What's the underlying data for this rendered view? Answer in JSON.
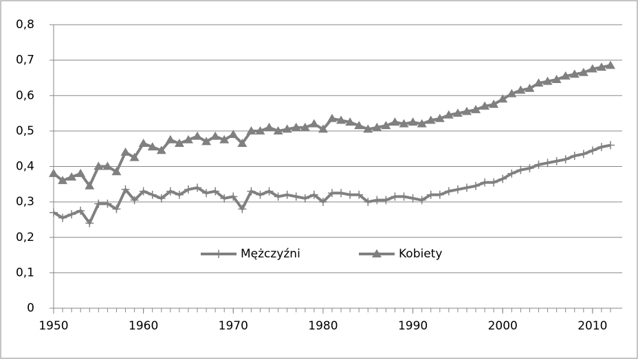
{
  "chart_data": {
    "type": "line",
    "x": [
      1950,
      1951,
      1952,
      1953,
      1954,
      1955,
      1956,
      1957,
      1958,
      1959,
      1960,
      1961,
      1962,
      1963,
      1964,
      1965,
      1966,
      1967,
      1968,
      1969,
      1970,
      1971,
      1972,
      1973,
      1974,
      1975,
      1976,
      1977,
      1978,
      1979,
      1980,
      1981,
      1982,
      1983,
      1984,
      1985,
      1986,
      1987,
      1988,
      1989,
      1990,
      1991,
      1992,
      1993,
      1994,
      1995,
      1996,
      1997,
      1998,
      1999,
      2000,
      2001,
      2002,
      2003,
      2004,
      2005,
      2006,
      2007,
      2008,
      2009,
      2010,
      2011,
      2012
    ],
    "series": [
      {
        "name": "Mężczyźni",
        "color": "#808080",
        "marker": "plus",
        "values": [
          0.27,
          0.255,
          0.265,
          0.275,
          0.24,
          0.295,
          0.295,
          0.28,
          0.335,
          0.305,
          0.33,
          0.32,
          0.31,
          0.33,
          0.32,
          0.335,
          0.34,
          0.325,
          0.33,
          0.31,
          0.315,
          0.28,
          0.33,
          0.32,
          0.33,
          0.315,
          0.32,
          0.315,
          0.31,
          0.32,
          0.3,
          0.325,
          0.325,
          0.32,
          0.32,
          0.3,
          0.305,
          0.305,
          0.315,
          0.315,
          0.31,
          0.305,
          0.32,
          0.32,
          0.33,
          0.335,
          0.34,
          0.345,
          0.355,
          0.355,
          0.365,
          0.38,
          0.39,
          0.395,
          0.405,
          0.41,
          0.415,
          0.42,
          0.43,
          0.435,
          0.445,
          0.455,
          0.46
        ]
      },
      {
        "name": "Kobiety",
        "color": "#808080",
        "marker": "triangle",
        "values": [
          0.38,
          0.36,
          0.37,
          0.38,
          0.345,
          0.4,
          0.4,
          0.385,
          0.44,
          0.425,
          0.465,
          0.455,
          0.445,
          0.475,
          0.465,
          0.475,
          0.485,
          0.47,
          0.485,
          0.475,
          0.49,
          0.465,
          0.5,
          0.5,
          0.51,
          0.5,
          0.505,
          0.51,
          0.51,
          0.52,
          0.505,
          0.535,
          0.53,
          0.525,
          0.515,
          0.505,
          0.51,
          0.515,
          0.525,
          0.52,
          0.525,
          0.52,
          0.53,
          0.535,
          0.545,
          0.55,
          0.555,
          0.56,
          0.57,
          0.575,
          0.59,
          0.605,
          0.615,
          0.62,
          0.635,
          0.64,
          0.645,
          0.655,
          0.66,
          0.665,
          0.675,
          0.68,
          0.685
        ]
      }
    ],
    "xlim": [
      1950,
      2012
    ],
    "xticks": [
      1950,
      1960,
      1970,
      1980,
      1990,
      2000,
      2010
    ],
    "ylim": [
      0,
      0.8
    ],
    "yticks": [
      0,
      {
        "value": 0.1,
        "label": "0,1"
      },
      {
        "value": 0.2,
        "label": "0,2"
      },
      {
        "value": 0.3,
        "label": "0,3"
      },
      {
        "value": 0.4,
        "label": "0,4"
      },
      {
        "value": 0.5,
        "label": "0,5"
      },
      {
        "value": 0.6,
        "label": "0,6"
      },
      {
        "value": 0.7,
        "label": "0,7"
      },
      {
        "value": 0.8,
        "label": "0,8"
      }
    ],
    "grid": true,
    "legend": "lower center"
  }
}
